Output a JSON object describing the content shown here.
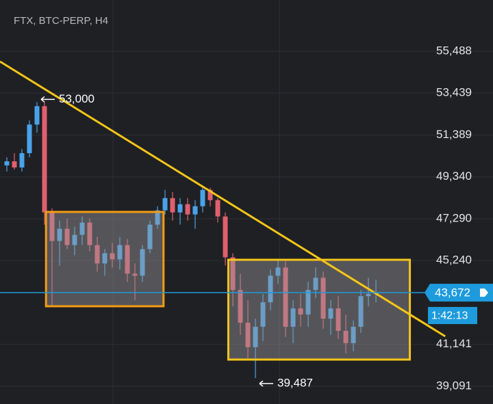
{
  "chart_data": {
    "type": "candlestick",
    "title": "FTX, BTC-PERP, H4",
    "ylim": [
      38219,
      57998
    ],
    "xlim": [
      -0.909,
      55.45
    ],
    "yticks": [
      {
        "value": 55488,
        "label": "55,488"
      },
      {
        "value": 53439,
        "label": "53,439"
      },
      {
        "value": 51389,
        "label": "51,389"
      },
      {
        "value": 49340,
        "label": "49,340"
      },
      {
        "value": 47290,
        "label": "47,290"
      },
      {
        "value": 45240,
        "label": "45,240"
      },
      {
        "value": 41141,
        "label": "41,141"
      },
      {
        "value": 39091,
        "label": "39,091"
      }
    ],
    "xgrid": [
      14.1,
      36.2
    ],
    "grid": true,
    "up_color": "#4aa3e8",
    "down_color": "#e0606e",
    "open": [
      49900,
      50100,
      49800,
      50500,
      51900,
      52800,
      47600,
      46200,
      46800,
      46000,
      46500,
      47100,
      46000,
      45100,
      45600,
      45300,
      46000,
      44600,
      44500,
      45800,
      47000,
      47700,
      48300,
      47600,
      48000,
      47500,
      47900,
      48700,
      48200,
      47400,
      45400,
      43800,
      42200,
      41000,
      42000,
      43200,
      44500,
      44900,
      42000,
      42900,
      42600,
      43800,
      44400,
      42400,
      42900,
      41800,
      41200,
      42000,
      43500,
      43600
    ],
    "high": [
      50300,
      50500,
      50700,
      52100,
      53000,
      53000,
      47800,
      47200,
      47300,
      46900,
      47400,
      47300,
      46400,
      45800,
      46100,
      46400,
      46300,
      45100,
      46000,
      47200,
      47900,
      48700,
      48600,
      48300,
      48300,
      48200,
      48900,
      48800,
      48300,
      47600,
      45600,
      44600,
      43300,
      42400,
      43600,
      44800,
      45300,
      45200,
      43300,
      43600,
      44200,
      44900,
      44700,
      43300,
      43500,
      42600,
      42300,
      43800,
      44400,
      44300
    ],
    "low": [
      49600,
      49700,
      49600,
      50300,
      51500,
      47000,
      43000,
      45000,
      45800,
      45500,
      46000,
      45700,
      44700,
      44500,
      44900,
      44800,
      44200,
      43300,
      44200,
      45600,
      46800,
      47500,
      47200,
      47000,
      47200,
      46800,
      47600,
      47900,
      47100,
      45000,
      43000,
      41600,
      40400,
      39487,
      41300,
      42800,
      44100,
      41500,
      41200,
      42000,
      42000,
      43400,
      41900,
      41600,
      41400,
      40700,
      40800,
      41700,
      43000,
      43200
    ],
    "close": [
      50100,
      49800,
      50500,
      51900,
      52800,
      47600,
      46200,
      46800,
      46000,
      46500,
      47100,
      46000,
      45100,
      45600,
      45300,
      46000,
      44600,
      44500,
      45800,
      47000,
      47700,
      48300,
      47600,
      48000,
      47500,
      47900,
      48700,
      48200,
      47400,
      45400,
      43800,
      42200,
      41000,
      42000,
      43200,
      44500,
      44900,
      42000,
      42900,
      42600,
      43800,
      44400,
      42400,
      42900,
      41800,
      41200,
      42000,
      43500,
      43600,
      43672
    ],
    "annotations": [
      {
        "text": "53,000",
        "value": 53000
      },
      {
        "text": "39,487",
        "value": 39487
      }
    ],
    "current_price": {
      "value": 43672,
      "label": "43,672",
      "color": "#1e9bdc"
    },
    "countdown": "1:42:13",
    "trendline": {
      "x": [
        -0.909,
        58.2
      ],
      "y": [
        54986,
        41532
      ],
      "color": "#f5c518"
    },
    "boxes": [
      {
        "x": [
          5.2,
          20.8
        ],
        "y": [
          47623,
          43005
        ],
        "color": "#f39c12"
      },
      {
        "x": [
          29.4,
          53.5
        ],
        "y": [
          45280,
          40394
        ],
        "color": "#f5c518"
      }
    ]
  }
}
